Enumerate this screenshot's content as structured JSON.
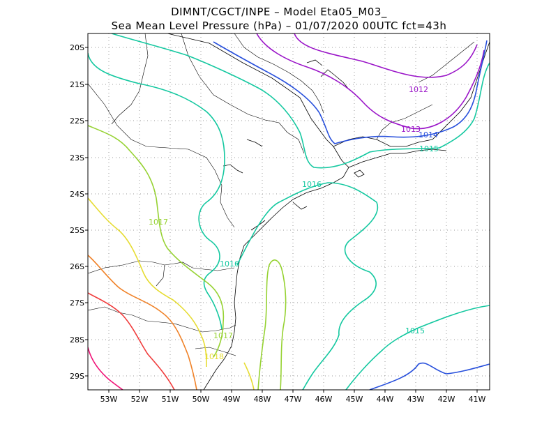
{
  "header": {
    "title_line1": "DIMNT/CGCT/INPE –  Model Eta05_M03_",
    "title_line2": "Sea Mean Level Pressure (hPa) – 01/07/2020 00UTC fct=43h"
  },
  "map": {
    "lat_labels": [
      "20S",
      "21S",
      "22S",
      "23S",
      "24S",
      "25S",
      "26S",
      "27S",
      "28S",
      "29S"
    ],
    "lon_labels": [
      "53W",
      "52W",
      "51W",
      "50W",
      "49W",
      "48W",
      "47W",
      "46W",
      "45W",
      "44W",
      "43W",
      "42W",
      "41W"
    ],
    "colors": {
      "frame": "#000000",
      "coast": "#000000",
      "grid": "#9a9a9a",
      "c1012": "#9a14c8",
      "c1013": "#9a14c8",
      "c1014": "#2850dc",
      "c1015": "#14c8a0",
      "c1016": "#14c8a0",
      "c1017": "#96d232",
      "c1018": "#e6dc32",
      "c1019": "#f08228",
      "c1020": "#f03c3c",
      "c1021": "#f01478"
    },
    "contour_labels": [
      {
        "text": "1012",
        "color": "#9a14c8"
      },
      {
        "text": "1013",
        "color": "#9a14c8"
      },
      {
        "text": "1014",
        "color": "#2850dc"
      },
      {
        "text": "1015",
        "color": "#14c8a0"
      },
      {
        "text": "1016",
        "color": "#14c8a0"
      },
      {
        "text": "1017",
        "color": "#96d232"
      },
      {
        "text": "1016",
        "color": "#14c8a0"
      },
      {
        "text": "1017",
        "color": "#96d232"
      },
      {
        "text": "1018",
        "color": "#e6dc32"
      },
      {
        "text": "1015",
        "color": "#14c8a0"
      }
    ]
  }
}
